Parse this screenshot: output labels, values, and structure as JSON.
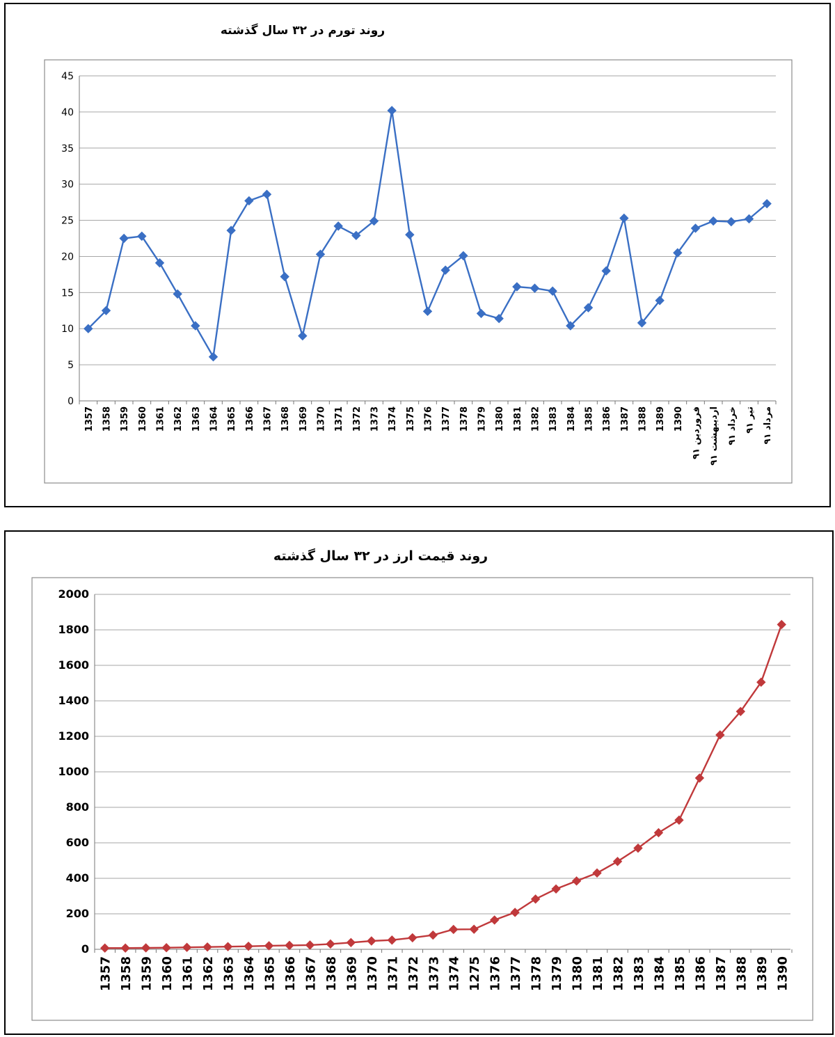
{
  "colors": {
    "series1": "#3a6fc4",
    "series2": "#c0393b",
    "grid": "#a6a6a6",
    "plot_border": "#8c8c8c"
  },
  "chart_data": [
    {
      "type": "line",
      "title": "روند تورم در ۳۲ سال گذشته",
      "xlabel": "",
      "ylabel": "",
      "ylim": [
        0,
        45
      ],
      "yticks": [
        "0",
        "5",
        "10",
        "15",
        "20",
        "25",
        "30",
        "35",
        "40",
        "45"
      ],
      "grid": true,
      "legend": "none",
      "marker": "diamond",
      "categories": [
        "1357",
        "1358",
        "1359",
        "1360",
        "1361",
        "1362",
        "1363",
        "1364",
        "1365",
        "1366",
        "1367",
        "1368",
        "1369",
        "1370",
        "1371",
        "1372",
        "1373",
        "1374",
        "1375",
        "1376",
        "1377",
        "1378",
        "1379",
        "1380",
        "1381",
        "1382",
        "1383",
        "1384",
        "1385",
        "1386",
        "1387",
        "1388",
        "1389",
        "1390",
        "فروردین ۹۱",
        "اردیبهشت ۹۱",
        "خرداد ۹۱",
        "تیر ۹۱",
        "مرداد ۹۱"
      ],
      "values": [
        10,
        12.5,
        22.5,
        22.8,
        19.1,
        14.8,
        10.4,
        6.1,
        23.6,
        27.7,
        28.6,
        17.2,
        9.0,
        20.3,
        24.2,
        22.9,
        24.9,
        40.2,
        23.0,
        12.4,
        18.1,
        20.1,
        12.1,
        11.4,
        15.8,
        15.6,
        15.2,
        10.4,
        12.9,
        18.0,
        25.3,
        10.8,
        13.9,
        20.5,
        23.9,
        24.9,
        24.8,
        25.2,
        27.3
      ]
    },
    {
      "type": "line",
      "title": "روند قیمت ارز در ۳۲ سال گذشته",
      "xlabel": "",
      "ylabel": "",
      "ylim": [
        0,
        2000
      ],
      "yticks": [
        "0",
        "200",
        "400",
        "600",
        "800",
        "1000",
        "1200",
        "1400",
        "1600",
        "1800",
        "2000"
      ],
      "grid": true,
      "legend": "none",
      "marker": "diamond",
      "categories": [
        "1357",
        "1358",
        "1359",
        "1360",
        "1361",
        "1362",
        "1363",
        "1364",
        "1365",
        "1366",
        "1367",
        "1368",
        "1369",
        "1370",
        "1371",
        "1372",
        "1373",
        "1374",
        "1275",
        "1376",
        "1377",
        "1378",
        "1379",
        "1380",
        "1381",
        "1382",
        "1383",
        "1384",
        "1385",
        "1386",
        "1387",
        "1388",
        "1389",
        "1390"
      ],
      "values": [
        7,
        7,
        8,
        9,
        11,
        13,
        15,
        17,
        20,
        22,
        24,
        30,
        38,
        47,
        52,
        65,
        80,
        112,
        113,
        165,
        208,
        283,
        340,
        385,
        430,
        495,
        570,
        657,
        728,
        965,
        1208,
        1340,
        1505,
        1830
      ]
    }
  ]
}
